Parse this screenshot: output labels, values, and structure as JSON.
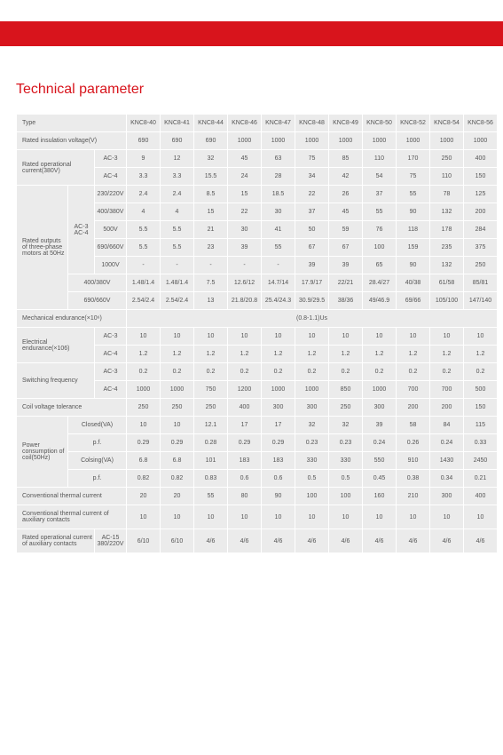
{
  "title": "Technical parameter",
  "headers": [
    "KNC8-40",
    "KNC8-41",
    "KNC8-44",
    "KNC8-46",
    "KNC8-47",
    "KNC8-48",
    "KNC8-49",
    "KNC8-50",
    "KNC8-52",
    "KNC8-54",
    "KNC8-56"
  ],
  "rows": {
    "type": "Type",
    "riv": {
      "label": "Rated insulation voltage(V)",
      "vals": [
        "690",
        "690",
        "690",
        "1000",
        "1000",
        "1000",
        "1000",
        "1000",
        "1000",
        "1000",
        "1000"
      ]
    },
    "roc": {
      "label": "Rated operational current(380V)",
      "ac3": [
        "9",
        "12",
        "32",
        "45",
        "63",
        "75",
        "85",
        "110",
        "170",
        "250",
        "400"
      ],
      "ac4": [
        "3.3",
        "3.3",
        "15.5",
        "24",
        "28",
        "34",
        "42",
        "54",
        "75",
        "110",
        "150"
      ]
    },
    "rout": {
      "label": "Rated outputs of three-phase motors at 50Hz",
      "sub": "AC-3 AC-4",
      "r": [
        {
          "v": "230/220V",
          "d": [
            "2.4",
            "2.4",
            "8.5",
            "15",
            "18.5",
            "22",
            "26",
            "37",
            "55",
            "78",
            "125"
          ]
        },
        {
          "v": "400/380V",
          "d": [
            "4",
            "4",
            "15",
            "22",
            "30",
            "37",
            "45",
            "55",
            "90",
            "132",
            "200"
          ]
        },
        {
          "v": "500V",
          "d": [
            "5.5",
            "5.5",
            "21",
            "30",
            "41",
            "50",
            "59",
            "76",
            "118",
            "178",
            "284"
          ]
        },
        {
          "v": "690/660V",
          "d": [
            "5.5",
            "5.5",
            "23",
            "39",
            "55",
            "67",
            "67",
            "100",
            "159",
            "235",
            "375"
          ]
        },
        {
          "v": "1000V",
          "d": [
            "-",
            "-",
            "-",
            "-",
            "-",
            "39",
            "39",
            "65",
            "90",
            "132",
            "250"
          ]
        }
      ],
      "r2": [
        {
          "v": "400/380V",
          "d": [
            "1.48/1.4",
            "1.48/1.4",
            "7.5",
            "12.6/12",
            "14.7/14",
            "17.9/17",
            "22/21",
            "28.4/27",
            "40/38",
            "61/58",
            "85/81"
          ]
        },
        {
          "v": "690/660V",
          "d": [
            "2.54/2.4",
            "2.54/2.4",
            "13",
            "21.8/20.8",
            "25.4/24.3",
            "30.9/29.5",
            "38/36",
            "49/46.9",
            "69/66",
            "105/100",
            "147/140"
          ]
        }
      ]
    },
    "mech": {
      "label": "Mechanical endurance(×10⁶)",
      "val": "(0.8-1.1)Us"
    },
    "elec": {
      "label": "Electrical endurance(×106)",
      "ac3": [
        "10",
        "10",
        "10",
        "10",
        "10",
        "10",
        "10",
        "10",
        "10",
        "10",
        "10"
      ],
      "ac4": [
        "1.2",
        "1.2",
        "1.2",
        "1.2",
        "1.2",
        "1.2",
        "1.2",
        "1.2",
        "1.2",
        "1.2",
        "1.2"
      ]
    },
    "sw": {
      "label": "Switching frequency",
      "ac3": [
        "0.2",
        "0.2",
        "0.2",
        "0.2",
        "0.2",
        "0.2",
        "0.2",
        "0.2",
        "0.2",
        "0.2",
        "0.2"
      ],
      "ac4": [
        "1000",
        "1000",
        "750",
        "1200",
        "1000",
        "1000",
        "850",
        "1000",
        "700",
        "700",
        "500"
      ]
    },
    "cvt": {
      "label": "Coil voltage tolerance",
      "vals": [
        "250",
        "250",
        "250",
        "400",
        "300",
        "300",
        "250",
        "300",
        "200",
        "200",
        "150"
      ]
    },
    "pc": {
      "label": "Power consumption of coil(50Hz)",
      "r": [
        {
          "v": "Closed(VA)",
          "d": [
            "10",
            "10",
            "12.1",
            "17",
            "17",
            "32",
            "32",
            "39",
            "58",
            "84",
            "115"
          ]
        },
        {
          "v": "p.f.",
          "d": [
            "0.29",
            "0.29",
            "0.28",
            "0.29",
            "0.29",
            "0.23",
            "0.23",
            "0.24",
            "0.26",
            "0.24",
            "0.33"
          ]
        },
        {
          "v": "Colsing(VA)",
          "d": [
            "6.8",
            "6.8",
            "101",
            "183",
            "183",
            "330",
            "330",
            "550",
            "910",
            "1430",
            "2450"
          ]
        },
        {
          "v": "p.f.",
          "d": [
            "0.82",
            "0.82",
            "0.83",
            "0.6",
            "0.6",
            "0.5",
            "0.5",
            "0.45",
            "0.38",
            "0.34",
            "0.21"
          ]
        }
      ]
    },
    "ctc": {
      "label": "Conventional thermal current",
      "vals": [
        "20",
        "20",
        "55",
        "80",
        "90",
        "100",
        "100",
        "160",
        "210",
        "300",
        "400"
      ]
    },
    "ctca": {
      "label": "Conventional thermal current of auxiliary contacts",
      "vals": [
        "10",
        "10",
        "10",
        "10",
        "10",
        "10",
        "10",
        "10",
        "10",
        "10",
        "10"
      ]
    },
    "rocac": {
      "label": "Rated operational current of auxiliary contacts",
      "sub": "AC-15 380/220V",
      "vals": [
        "6/10",
        "6/10",
        "4/6",
        "4/6",
        "4/6",
        "4/6",
        "4/6",
        "4/6",
        "4/6",
        "4/6",
        "4/6"
      ]
    }
  }
}
